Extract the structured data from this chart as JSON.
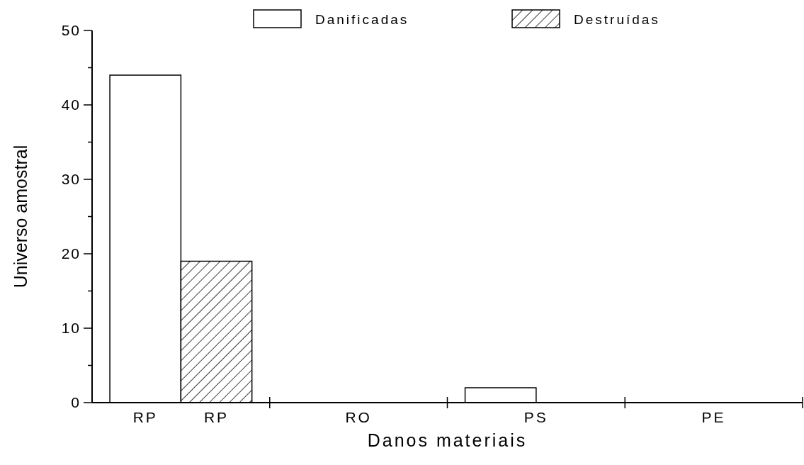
{
  "chart_data": {
    "type": "bar",
    "xlabel": "Danos materiais",
    "ylabel": "Universo amostral",
    "categories": [
      "RP",
      "RO",
      "PS",
      "PE"
    ],
    "series": [
      {
        "name": "Danificadas",
        "color": "#ffffff",
        "values": [
          44,
          0,
          2,
          0
        ]
      },
      {
        "name": "Destruídas",
        "color": "#000000",
        "values": [
          19,
          0,
          0,
          0
        ]
      }
    ],
    "annotations": [
      "RP"
    ],
    "ylim": [
      0,
      50
    ],
    "yticks": [
      0,
      {
        "value": 5,
        "label": null
      },
      10,
      {
        "value": 15,
        "label": null
      },
      20,
      {
        "value": 25,
        "label": null
      },
      30,
      {
        "value": 35,
        "label": null
      },
      40,
      {
        "value": 45,
        "label": null
      },
      50
    ],
    "grid": false,
    "legend": "top"
  }
}
